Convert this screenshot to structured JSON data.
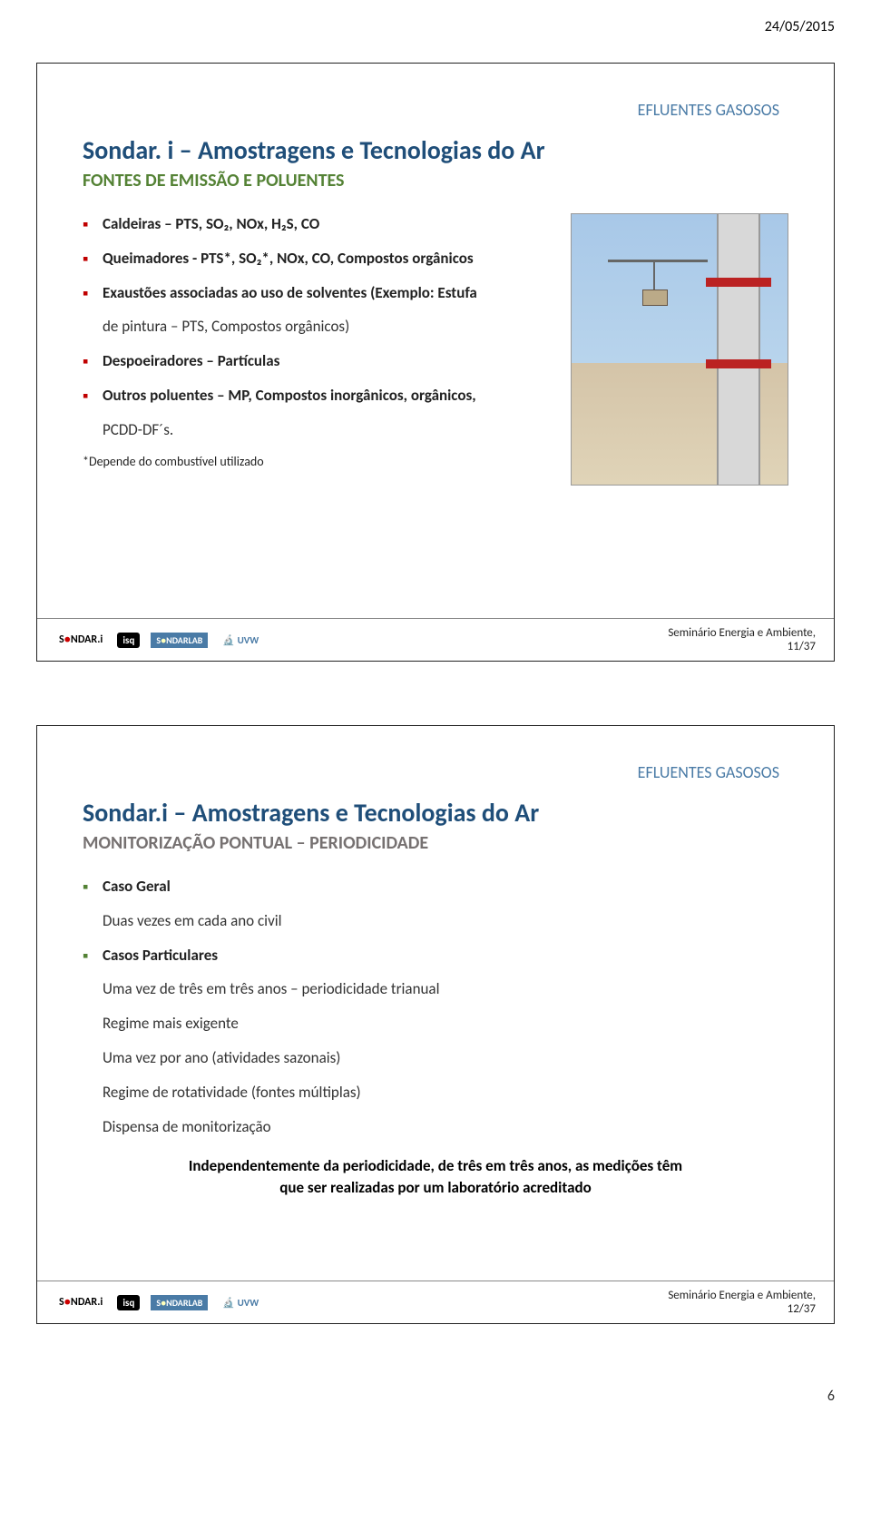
{
  "page": {
    "date": "24/05/2015",
    "page_number": "6"
  },
  "slide1": {
    "tag": "EFLUENTES GASOSOS",
    "title": "Sondar. i – Amostragens e Tecnologias do Ar",
    "subtitle": "FONTES DE EMISSÃO E POLUENTES",
    "bullets": [
      "Caldeiras – PTS, SO₂, NOx, H₂S, CO",
      "Queimadores  - PTS*, SO₂*, NOx, CO, Compostos orgânicos",
      "Exaustões associadas ao uso de solventes (Exemplo: Estufa",
      "Despoeiradores – Partículas",
      "Outros poluentes – MP, Compostos inorgânicos, orgânicos,"
    ],
    "after_b3": "de pintura – PTS, Compostos orgânicos)",
    "after_b5": "PCDD-DF´s.",
    "footnote": "*Depende do combustível utilizado",
    "footer_text": "Seminário Energia e Ambiente,",
    "footer_page": "11/37"
  },
  "slide2": {
    "tag": "EFLUENTES GASOSOS",
    "title": "Sondar.i – Amostragens e Tecnologias do Ar",
    "subtitle": "MONITORIZAÇÃO PONTUAL – PERIODICIDADE",
    "g1_label": "Caso Geral",
    "g1_text": "Duas vezes em cada ano civil",
    "g2_label": "Casos Particulares",
    "g2_lines": [
      "Uma vez de três em três anos – periodicidade trianual",
      "Regime mais exigente",
      "Uma vez por ano (atividades sazonais)",
      "Regime de rotatividade (fontes múltiplas)",
      "Dispensa de monitorização"
    ],
    "conclusion_l1": "Independentemente da periodicidade, de três em três anos, as medições têm",
    "conclusion_l2": "que ser realizadas por um laboratório acreditado",
    "footer_text": "Seminário Energia e Ambiente,",
    "footer_page": "12/37"
  },
  "logos": {
    "sondar_prefix": "S",
    "sondar_o": "●",
    "sondar_suffix": "NDAR.i",
    "isq": "isq",
    "sondarlab_prefix": "S",
    "sondarlab_suffix": "NDARLAB",
    "uvw": "UVW"
  },
  "colors": {
    "title": "#1f4e79",
    "subtitle_green": "#548235",
    "subtitle_grey": "#767171",
    "bullet_red": "#c00000",
    "tag_blue": "#4a7ba6"
  }
}
